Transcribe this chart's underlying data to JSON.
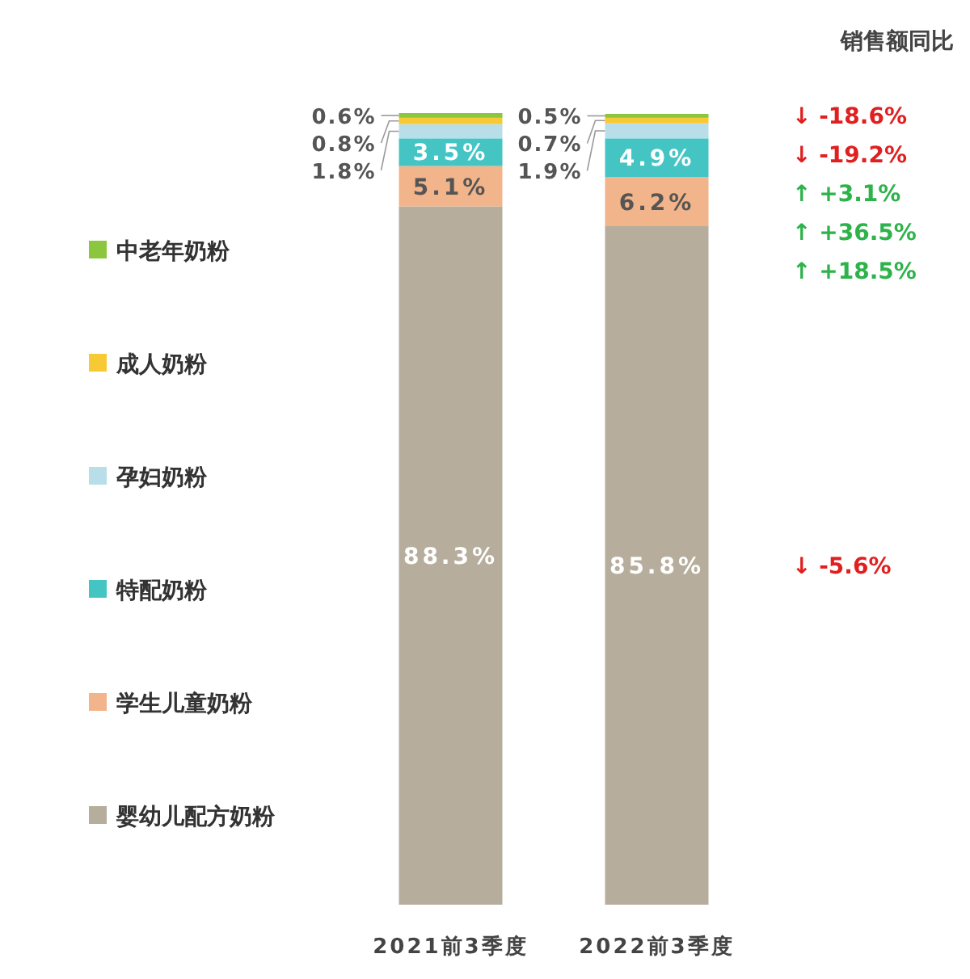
{
  "chart_data": {
    "type": "bar",
    "stacked": true,
    "legend": "left",
    "categories": [
      "2021前3季度",
      "2022前3季度"
    ],
    "series": [
      {
        "name": "婴幼儿配方奶粉",
        "color": "#b6ad9c",
        "values": [
          88.3,
          85.8
        ],
        "value_labels": [
          "88.3%",
          "85.8%"
        ]
      },
      {
        "name": "学生儿童奶粉",
        "color": "#f2b48a",
        "values": [
          5.1,
          6.2
        ],
        "value_labels": [
          "5.1%",
          "6.2%"
        ]
      },
      {
        "name": "特配奶粉",
        "color": "#45c4c4",
        "values": [
          3.5,
          4.9
        ],
        "value_labels": [
          "3.5%",
          "4.9%"
        ]
      },
      {
        "name": "孕妇奶粉",
        "color": "#b8dfe9",
        "values": [
          1.8,
          1.9
        ],
        "value_labels": [
          "1.8%",
          "1.9%"
        ]
      },
      {
        "name": "成人奶粉",
        "color": "#f7c935",
        "values": [
          0.8,
          0.7
        ],
        "value_labels": [
          "0.8%",
          "0.7%"
        ]
      },
      {
        "name": "中老年奶粉",
        "color": "#8cc63f",
        "values": [
          0.6,
          0.5
        ],
        "value_labels": [
          "0.6%",
          "0.5%"
        ]
      }
    ],
    "annotations": [
      "销售额同比",
      "↓ -18.6%",
      "↓ -19.2%",
      "↑ +3.1%",
      "↑ +36.5%",
      "↑ +18.5%",
      "↓ -5.6%"
    ]
  }
}
